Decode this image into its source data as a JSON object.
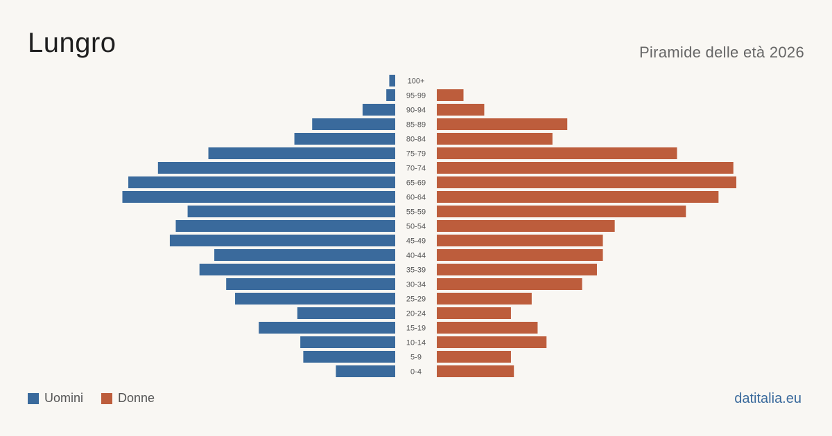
{
  "header": {
    "title": "Lungro",
    "subtitle": "Piramide delle età 2026"
  },
  "legend": {
    "men_label": "Uomini",
    "women_label": "Donne"
  },
  "brand": "datitalia.eu",
  "colors": {
    "men": "#3a6a9c",
    "women": "#bd5d3c",
    "background": "#f9f7f3"
  },
  "chart_data": {
    "type": "bar",
    "orientation": "horizontal-pyramid",
    "categories": [
      "100+",
      "95-99",
      "90-94",
      "85-89",
      "80-84",
      "75-79",
      "70-74",
      "65-69",
      "60-64",
      "55-59",
      "50-54",
      "45-49",
      "40-44",
      "35-39",
      "30-34",
      "25-29",
      "20-24",
      "15-19",
      "10-14",
      "5-9",
      "0-4"
    ],
    "series": [
      {
        "name": "Uomini",
        "values": [
          2,
          3,
          11,
          28,
          34,
          63,
          80,
          90,
          92,
          70,
          74,
          76,
          61,
          66,
          57,
          54,
          33,
          46,
          32,
          31,
          20
        ]
      },
      {
        "name": "Donne",
        "values": [
          0,
          9,
          16,
          44,
          39,
          81,
          100,
          101,
          95,
          84,
          60,
          56,
          56,
          54,
          49,
          32,
          25,
          34,
          37,
          25,
          26
        ]
      }
    ],
    "xlim": [
      0,
      101
    ],
    "grid": false,
    "legend_position": "bottom-left"
  }
}
